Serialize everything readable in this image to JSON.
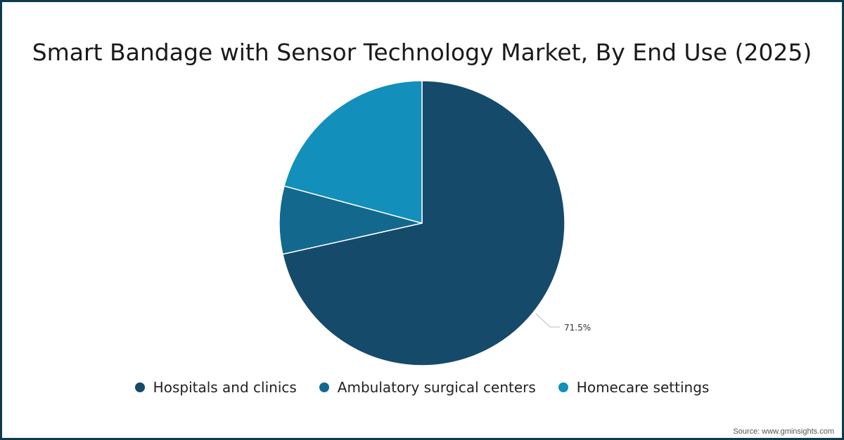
{
  "title": "Smart Bandage with Sensor Technology Market, By End Use (2025)",
  "source": "Source: www.gminsights.com",
  "legend": [
    {
      "label": "Hospitals and clinics",
      "color": "#154a6a"
    },
    {
      "label": "Ambulatory surgical centers",
      "color": "#12698d"
    },
    {
      "label": "Homecare settings",
      "color": "#128fba"
    }
  ],
  "data_label": "71.5%",
  "chart_data": {
    "type": "pie",
    "title": "Smart Bandage with Sensor Technology Market, By End Use (2025)",
    "categories": [
      "Hospitals and clinics",
      "Ambulatory surgical centers",
      "Homecare settings"
    ],
    "values": [
      71.5,
      7.7,
      20.8
    ],
    "labeled_values": {
      "Hospitals and clinics": "71.5%"
    },
    "colors": [
      "#154a6a",
      "#12698d",
      "#128fba"
    ],
    "legend_position": "bottom"
  }
}
